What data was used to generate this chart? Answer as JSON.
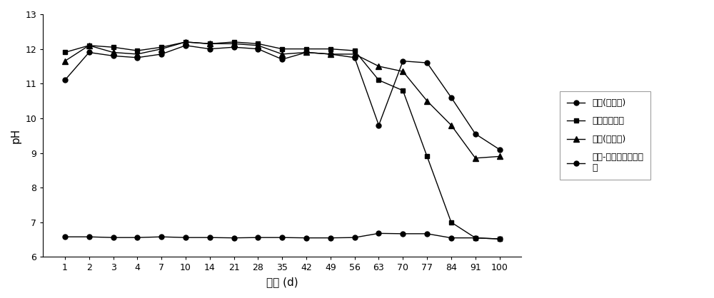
{
  "x_ticks": [
    1,
    2,
    3,
    4,
    7,
    10,
    14,
    21,
    28,
    35,
    42,
    49,
    56,
    63,
    70,
    77,
    84,
    91,
    100
  ],
  "series": [
    {
      "name": "对照(蜗馏水)",
      "marker": "o",
      "values": [
        6.58,
        6.58,
        6.56,
        6.56,
        6.58,
        6.56,
        6.56,
        6.55,
        6.56,
        6.56,
        6.55,
        6.55,
        6.56,
        6.68,
        6.67,
        6.67,
        6.55,
        6.55,
        6.52
      ]
    },
    {
      "name": "过氧化钙原料",
      "marker": "s",
      "values": [
        11.9,
        12.1,
        12.05,
        11.95,
        12.05,
        12.2,
        12.15,
        12.2,
        12.15,
        12.0,
        12.0,
        12.0,
        11.95,
        11.1,
        10.8,
        8.9,
        7.0,
        6.55,
        6.52
      ]
    },
    {
      "name": "颗粒(未包膜)",
      "marker": "^",
      "values": [
        11.65,
        12.1,
        11.9,
        11.85,
        12.0,
        12.2,
        12.15,
        12.15,
        12.1,
        11.85,
        11.9,
        11.85,
        11.85,
        11.5,
        11.35,
        10.5,
        9.8,
        8.85,
        8.9
      ]
    },
    {
      "name": "石蜡-松香包膜过氧化\n钙",
      "marker": "o",
      "values": [
        11.1,
        11.9,
        11.8,
        11.75,
        11.85,
        12.1,
        12.0,
        12.05,
        12.0,
        11.7,
        11.9,
        11.85,
        11.75,
        9.8,
        11.65,
        11.6,
        10.6,
        9.55,
        9.1
      ]
    }
  ],
  "xlabel": "时间 (d)",
  "ylabel": "pH",
  "ylim": [
    6,
    13
  ],
  "yticks": [
    6,
    7,
    8,
    9,
    10,
    11,
    12,
    13
  ],
  "line_color": "#000000",
  "legend_fontsize": 9,
  "axis_fontsize": 11,
  "tick_fontsize": 9,
  "figsize": [
    10.0,
    4.18
  ],
  "dpi": 100
}
